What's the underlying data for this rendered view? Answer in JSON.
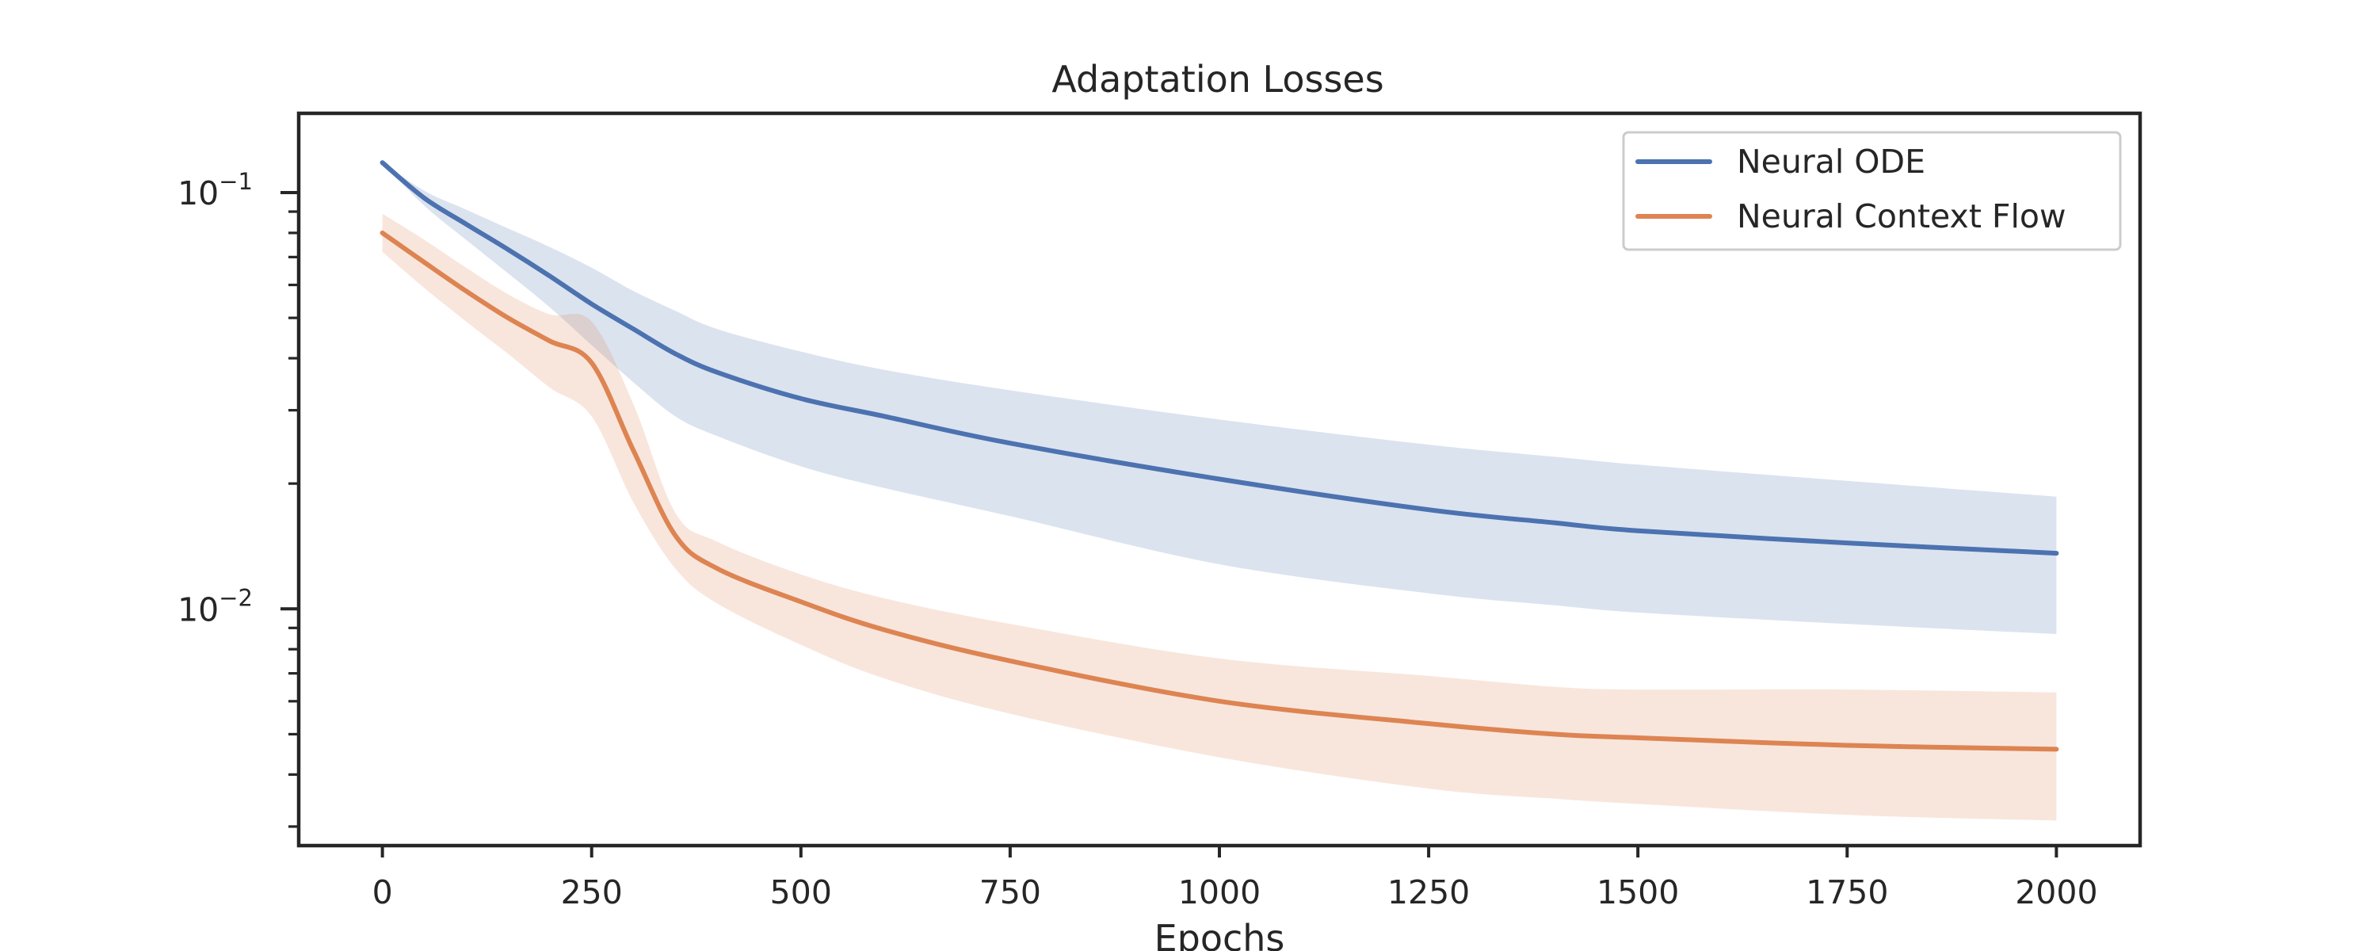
{
  "chart_data": {
    "type": "line",
    "title": "Adaptation Losses",
    "xlabel": "Epochs",
    "ylabel": "",
    "yscale": "log",
    "xlim": [
      -100,
      2100
    ],
    "ylim": [
      0.0027,
      0.155
    ],
    "x_ticks": [
      0,
      250,
      500,
      750,
      1000,
      1250,
      1500,
      1750,
      2000
    ],
    "x_tick_labels": [
      "0",
      "250",
      "500",
      "750",
      "1000",
      "1250",
      "1500",
      "1750",
      "2000"
    ],
    "y_major_ticks": [
      {
        "value": 0.1,
        "base": "10",
        "exp": "−1"
      },
      {
        "value": 0.01,
        "base": "10",
        "exp": "−2"
      }
    ],
    "y_minor_ticks": [
      0.003,
      0.004,
      0.005,
      0.006,
      0.007,
      0.008,
      0.009,
      0.02,
      0.03,
      0.04,
      0.05,
      0.06,
      0.07,
      0.08,
      0.09
    ],
    "grid": false,
    "legend_position": "top-right",
    "x": [
      0,
      50,
      100,
      150,
      200,
      250,
      300,
      350,
      400,
      500,
      600,
      750,
      1000,
      1250,
      1400,
      1500,
      1750,
      2000
    ],
    "series": [
      {
        "name": "Neural ODE",
        "color": "#4c72b0",
        "values": [
          0.118,
          0.097,
          0.084,
          0.073,
          0.063,
          0.054,
          0.047,
          0.041,
          0.037,
          0.032,
          0.029,
          0.025,
          0.0205,
          0.0173,
          0.0161,
          0.0154,
          0.0144,
          0.0136
        ],
        "lower": [
          0.118,
          0.093,
          0.077,
          0.064,
          0.053,
          0.043,
          0.035,
          0.029,
          0.026,
          0.022,
          0.0195,
          0.0167,
          0.0128,
          0.0109,
          0.0102,
          0.0098,
          0.0092,
          0.0087
        ],
        "upper": [
          0.118,
          0.101,
          0.091,
          0.082,
          0.074,
          0.066,
          0.058,
          0.052,
          0.047,
          0.0415,
          0.0375,
          0.0335,
          0.0285,
          0.0248,
          0.0232,
          0.0222,
          0.0203,
          0.0186
        ]
      },
      {
        "name": "Neural Context Flow",
        "color": "#dd8452",
        "values": [
          0.08,
          0.068,
          0.058,
          0.05,
          0.044,
          0.039,
          0.024,
          0.015,
          0.0125,
          0.0104,
          0.0089,
          0.0075,
          0.006,
          0.0053,
          0.005,
          0.0049,
          0.0047,
          0.0046
        ],
        "lower": [
          0.072,
          0.059,
          0.049,
          0.041,
          0.034,
          0.029,
          0.018,
          0.0125,
          0.0103,
          0.0082,
          0.0068,
          0.0056,
          0.0044,
          0.0037,
          0.0035,
          0.0034,
          0.0032,
          0.0031
        ],
        "upper": [
          0.089,
          0.077,
          0.066,
          0.057,
          0.051,
          0.049,
          0.031,
          0.017,
          0.0145,
          0.0121,
          0.0106,
          0.0092,
          0.0076,
          0.0069,
          0.0065,
          0.0064,
          0.0064,
          0.0063
        ]
      }
    ]
  }
}
